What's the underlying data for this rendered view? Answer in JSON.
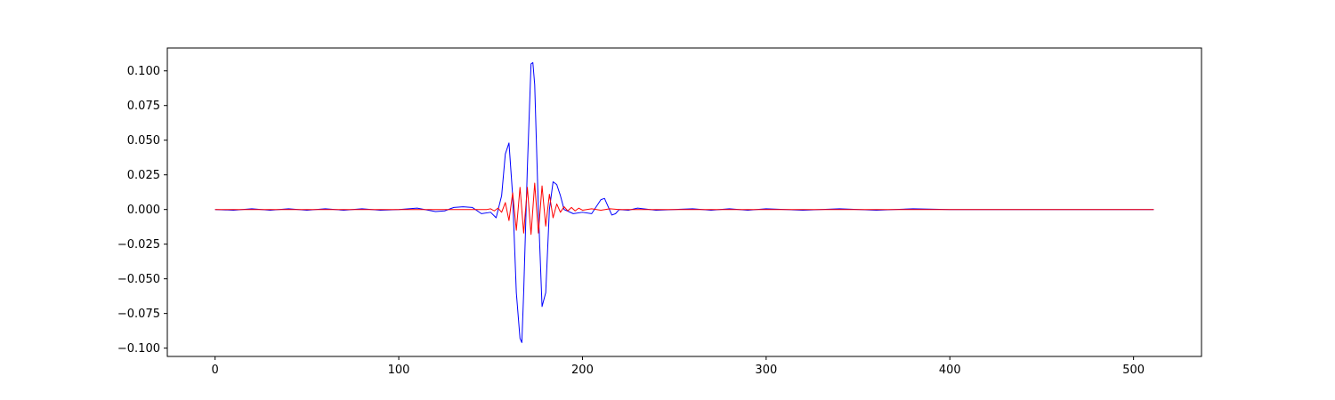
{
  "chart_data": {
    "type": "line",
    "title": "",
    "xlabel": "",
    "ylabel": "",
    "xlim": [
      -26,
      537
    ],
    "ylim": [
      -0.106,
      0.1165
    ],
    "grid": false,
    "legend": "none",
    "x_ticks": [
      {
        "value": 0,
        "label": "0"
      },
      {
        "value": 100,
        "label": "100"
      },
      {
        "value": 200,
        "label": "200"
      },
      {
        "value": 300,
        "label": "300"
      },
      {
        "value": 400,
        "label": "400"
      },
      {
        "value": 500,
        "label": "500"
      }
    ],
    "y_ticks": [
      {
        "value": -0.1,
        "label": "−0.100"
      },
      {
        "value": -0.075,
        "label": "−0.075"
      },
      {
        "value": -0.05,
        "label": "−0.050"
      },
      {
        "value": -0.025,
        "label": "−0.025"
      },
      {
        "value": 0,
        "label": "0.000"
      },
      {
        "value": 0.025,
        "label": "0.025"
      },
      {
        "value": 0.05,
        "label": "0.050"
      },
      {
        "value": 0.075,
        "label": "0.075"
      },
      {
        "value": 0.1,
        "label": "0.100"
      }
    ],
    "series": [
      {
        "color": "#0000ff",
        "x": [
          0,
          10,
          20,
          30,
          40,
          50,
          60,
          70,
          80,
          90,
          100,
          110,
          120,
          125,
          130,
          135,
          140,
          145,
          150,
          153,
          156,
          158,
          160,
          162,
          164,
          166,
          167,
          168,
          170,
          172,
          173,
          174,
          176,
          178,
          180,
          182,
          184,
          186,
          188,
          190,
          195,
          200,
          205,
          210,
          212,
          214,
          216,
          218,
          220,
          225,
          230,
          240,
          250,
          260,
          270,
          280,
          290,
          300,
          320,
          340,
          360,
          380,
          400,
          420,
          440,
          460,
          480,
          500,
          511
        ],
        "y": [
          0.0,
          -0.0005,
          0.0005,
          -0.0005,
          0.0005,
          -0.0005,
          0.0005,
          -0.0005,
          0.0005,
          -0.0005,
          0.0,
          0.001,
          -0.0015,
          -0.001,
          0.0015,
          0.002,
          0.0015,
          -0.003,
          -0.002,
          -0.006,
          0.01,
          0.04,
          0.048,
          0.01,
          -0.06,
          -0.093,
          -0.096,
          -0.06,
          0.03,
          0.105,
          0.106,
          0.09,
          0.0,
          -0.07,
          -0.06,
          0.0,
          0.02,
          0.018,
          0.01,
          0.0,
          -0.003,
          -0.002,
          -0.003,
          0.007,
          0.008,
          0.002,
          -0.004,
          -0.003,
          0.0,
          -0.0005,
          0.001,
          -0.0005,
          0.0,
          0.0005,
          -0.0005,
          0.0005,
          -0.0005,
          0.0005,
          -0.0005,
          0.0005,
          -0.0005,
          0.0005,
          0.0,
          0.0,
          0.0,
          0.0,
          0.0,
          0.0,
          0.0
        ]
      },
      {
        "color": "#ff0000",
        "x": [
          0,
          50,
          100,
          140,
          148,
          150,
          152,
          154,
          156,
          158,
          160,
          162,
          164,
          166,
          168,
          170,
          172,
          174,
          176,
          178,
          180,
          182,
          184,
          186,
          188,
          190,
          192,
          194,
          196,
          198,
          200,
          205,
          210,
          215,
          220,
          230,
          260,
          300,
          400,
          511
        ],
        "y": [
          0.0,
          0.0,
          0.0,
          0.0,
          0.0,
          0.0005,
          -0.001,
          0.001,
          -0.002,
          0.005,
          -0.008,
          0.012,
          -0.015,
          0.016,
          -0.017,
          0.016,
          -0.018,
          0.019,
          -0.017,
          0.017,
          -0.012,
          0.011,
          -0.006,
          0.004,
          -0.002,
          0.002,
          -0.001,
          0.0015,
          -0.001,
          0.001,
          -0.0005,
          0.0005,
          -0.0005,
          0.0005,
          0.0,
          0.0,
          0.0,
          0.0,
          0.0,
          0.0
        ]
      }
    ]
  }
}
